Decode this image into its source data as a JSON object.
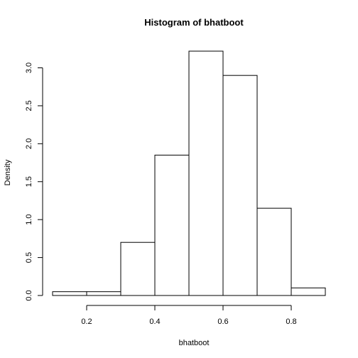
{
  "chart_data": {
    "type": "bar",
    "title": "Histogram of bhatboot",
    "xlabel": "bhatboot",
    "ylabel": "Density",
    "bins": [
      {
        "from": 0.1,
        "to": 0.2,
        "density": 0.05
      },
      {
        "from": 0.2,
        "to": 0.3,
        "density": 0.05
      },
      {
        "from": 0.3,
        "to": 0.4,
        "density": 0.7
      },
      {
        "from": 0.4,
        "to": 0.5,
        "density": 1.85
      },
      {
        "from": 0.5,
        "to": 0.6,
        "density": 3.22
      },
      {
        "from": 0.6,
        "to": 0.7,
        "density": 2.9
      },
      {
        "from": 0.7,
        "to": 0.8,
        "density": 1.15
      },
      {
        "from": 0.8,
        "to": 0.9,
        "density": 0.1
      }
    ],
    "xlim": [
      0.1,
      0.9
    ],
    "ylim": [
      0,
      3.22
    ],
    "x_ticks": [
      0.2,
      0.4,
      0.6,
      0.8
    ],
    "x_tick_labels": [
      "0.2",
      "0.4",
      "0.6",
      "0.8"
    ],
    "y_ticks": [
      0,
      0.5,
      1.0,
      1.5,
      2.0,
      2.5,
      3.0
    ],
    "y_tick_labels": [
      "0.0",
      "0.5",
      "1.0",
      "1.5",
      "2.0",
      "2.5",
      "3.0"
    ],
    "grid": false,
    "legend": "none"
  }
}
